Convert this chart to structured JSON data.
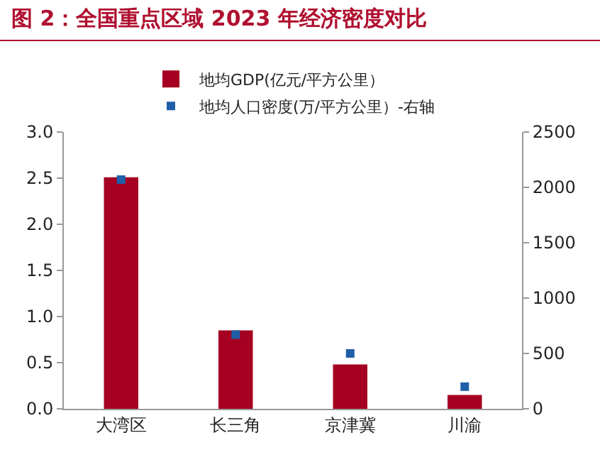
{
  "chart_data": {
    "type": "bar",
    "title": "图 2：全国重点区域 2023 年经济密度对比",
    "categories": [
      "大湾区",
      "长三角",
      "京津冀",
      "川渝"
    ],
    "series": [
      {
        "name": "地均GDP(亿元/平方公里）",
        "color": "#a50021",
        "values": [
          2.51,
          0.85,
          0.48,
          0.15
        ]
      },
      {
        "name": "地均人口密度(万/平方公里）-右轴",
        "type": "scatter",
        "axis": "y2",
        "color": "#1f5fa8",
        "values": [
          2070,
          670,
          500,
          200
        ]
      }
    ],
    "ylim": [
      0,
      3
    ],
    "yticks": [
      {
        "value": 0,
        "label": "0.0"
      },
      {
        "value": 0.5,
        "label": "0.5"
      },
      {
        "value": 1,
        "label": "1.0"
      },
      {
        "value": 1.5,
        "label": "1.5"
      },
      {
        "value": 2,
        "label": "2.0"
      },
      {
        "value": 2.5,
        "label": "2.5"
      },
      {
        "value": 3,
        "label": "3.0"
      }
    ],
    "y2lim": [
      0,
      2500
    ],
    "y2ticks": [
      0,
      500,
      1000,
      1500,
      2000,
      2500
    ],
    "marker": "square",
    "legend": "top",
    "grid": false
  }
}
